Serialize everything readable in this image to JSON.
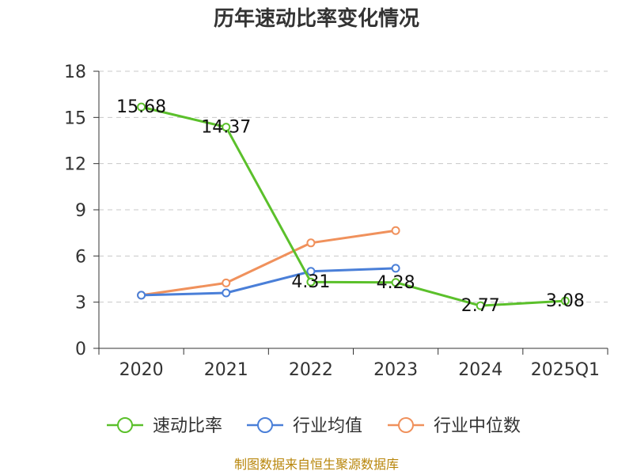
{
  "chart_data": {
    "type": "line",
    "title": "历年速动比率变化情况",
    "categories": [
      "2020",
      "2021",
      "2022",
      "2023",
      "2024",
      "2025Q1"
    ],
    "ylim": [
      0,
      18
    ],
    "yticks": [
      0,
      3,
      6,
      9,
      12,
      15,
      18
    ],
    "grid": true,
    "legend": "bottom",
    "series": [
      {
        "name": "速动比率",
        "color": "#5bc02b",
        "values": [
          15.68,
          14.37,
          4.31,
          4.28,
          2.77,
          3.08
        ],
        "labels": [
          "15.68",
          "14.37",
          "4.31",
          "4.28",
          "2.77",
          "3.08"
        ]
      },
      {
        "name": "行业均值",
        "color": "#4a7fd8",
        "values": [
          3.45,
          3.6,
          5.0,
          5.2,
          null,
          null
        ]
      },
      {
        "name": "行业中位数",
        "color": "#f0915c",
        "values": [
          3.45,
          4.25,
          6.85,
          7.65,
          null,
          null
        ]
      }
    ]
  },
  "source": "制图数据来自恒生聚源数据库"
}
